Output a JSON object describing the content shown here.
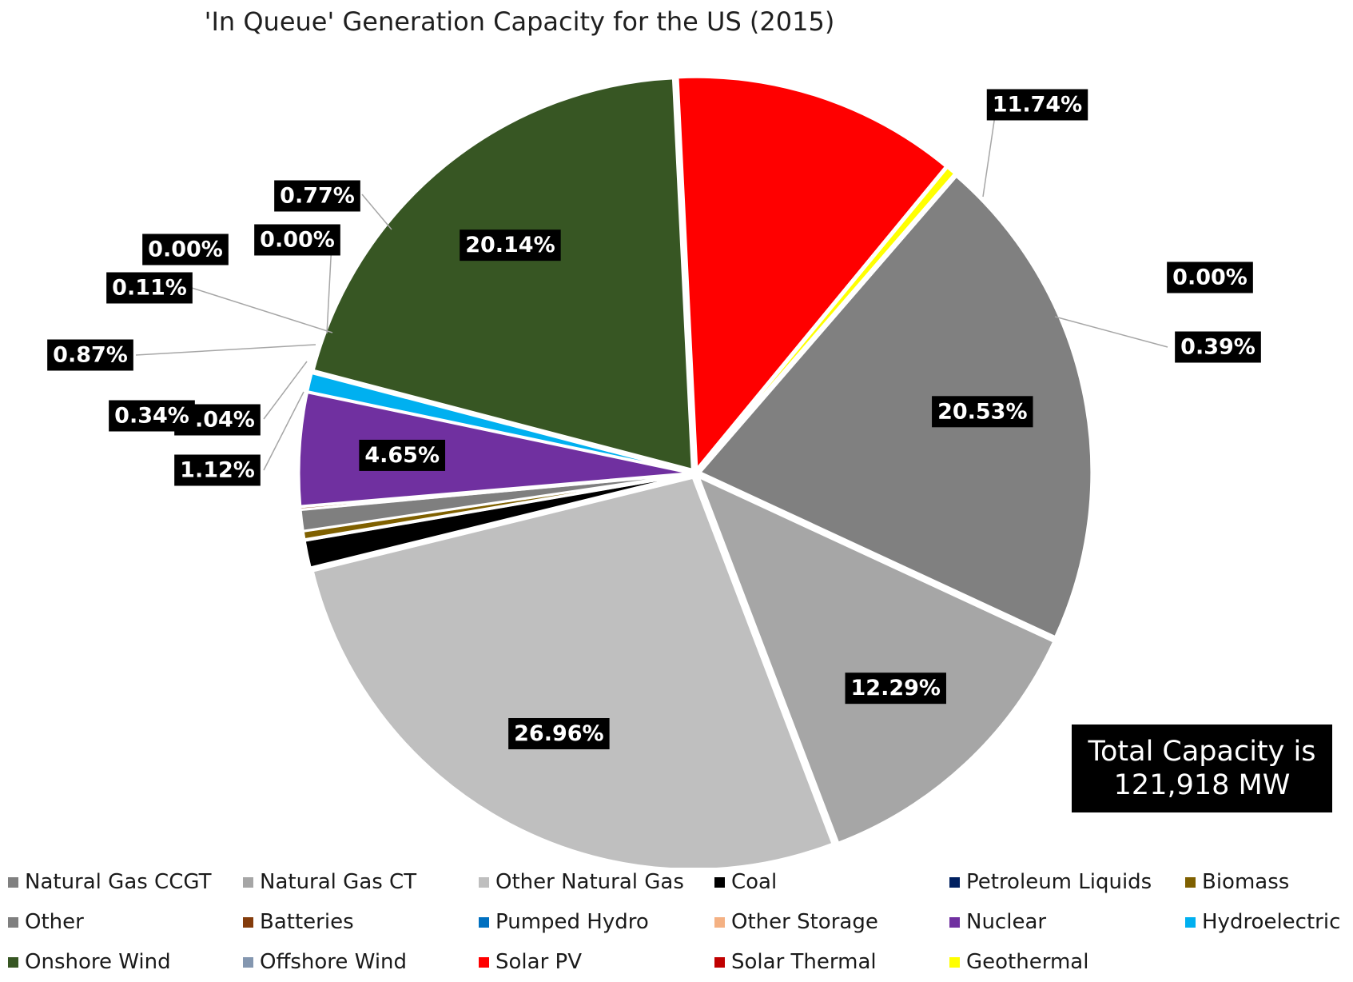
{
  "chart_data": {
    "type": "pie",
    "title": "'In Queue' Generation Capacity for the US (2015)",
    "annotation": [
      "Total Capacity is",
      "121,918 MW"
    ],
    "legend_position": "bottom",
    "slices": [
      {
        "name": "Natural Gas CCGT",
        "value": 20.53,
        "label": "20.53%",
        "color": "#808080"
      },
      {
        "name": "Natural Gas CT",
        "value": 12.29,
        "label": "12.29%",
        "color": "#a6a6a6"
      },
      {
        "name": "Other Natural Gas",
        "value": 26.96,
        "label": "26.96%",
        "color": "#bfbfbf"
      },
      {
        "name": "Coal",
        "value": 1.12,
        "label": "1.12%",
        "color": "#000000"
      },
      {
        "name": "Petroleum Liquids",
        "value": 0.04,
        "label": "0.04%",
        "color": "#002060"
      },
      {
        "name": "Biomass",
        "value": 0.34,
        "label": "0.34%",
        "color": "#7f6000"
      },
      {
        "name": "Other",
        "value": 0.87,
        "label": "0.87%",
        "color": "#7f7f7f"
      },
      {
        "name": "Batteries",
        "value": 0.11,
        "label": "0.11%",
        "color": "#843c0c"
      },
      {
        "name": "Pumped Hydro",
        "value": 0.0,
        "label": "0.00%",
        "color": "#0070c0"
      },
      {
        "name": "Other Storage",
        "value": 0.0,
        "label": "0.00%",
        "color": "#f4b183"
      },
      {
        "name": "Nuclear",
        "value": 4.65,
        "label": "4.65%",
        "color": "#7030a0"
      },
      {
        "name": "Hydroelectric",
        "value": 0.77,
        "label": "0.77%",
        "color": "#00b0f0"
      },
      {
        "name": "Onshore Wind",
        "value": 20.14,
        "label": "20.14%",
        "color": "#375623"
      },
      {
        "name": "Offshore Wind",
        "value": 0.0,
        "label": "",
        "color": "#8497b0"
      },
      {
        "name": "Solar PV",
        "value": 11.74,
        "label": "11.74%",
        "color": "#ff0000"
      },
      {
        "name": "Solar Thermal",
        "value": 0.0,
        "label": "0.00%",
        "color": "#c00000"
      },
      {
        "name": "Geothermal",
        "value": 0.39,
        "label": "0.39%",
        "color": "#ffff00"
      }
    ]
  }
}
